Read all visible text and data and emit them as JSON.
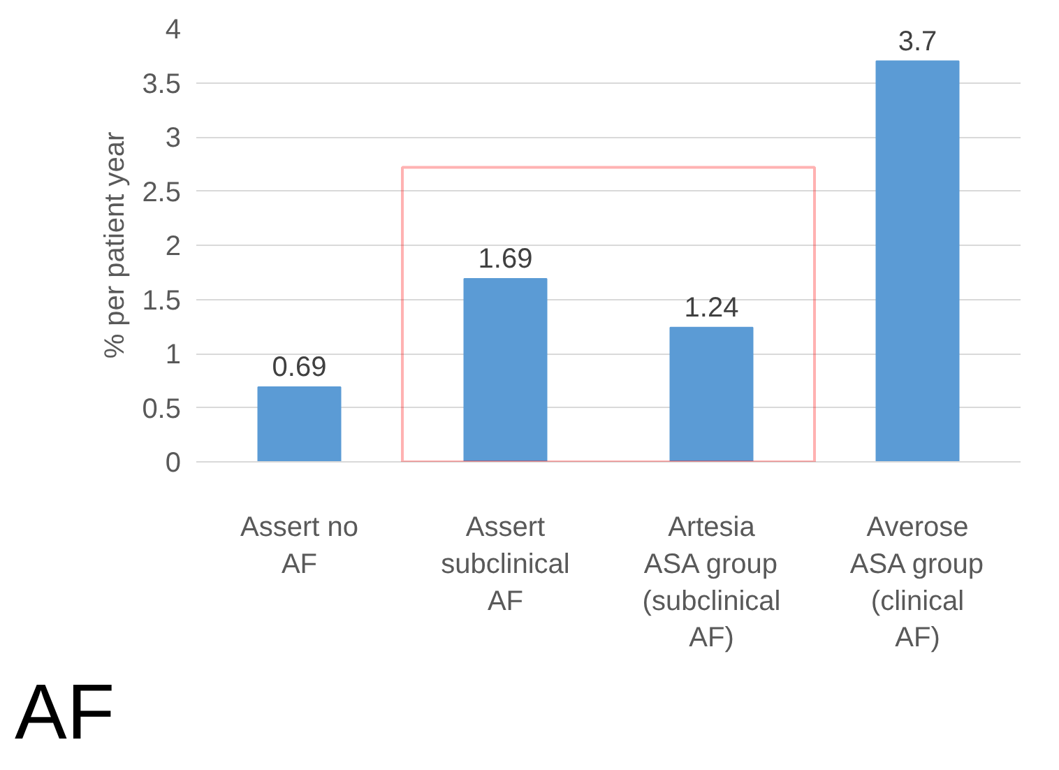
{
  "chart_data": {
    "type": "bar",
    "ylabel": "% per patient year",
    "categories": [
      "Assert no AF",
      "Assert subclinical AF",
      "Artesia ASA group (subclinical AF)",
      "Averose ASA group (clinical AF)"
    ],
    "values": [
      0.69,
      1.69,
      1.24,
      3.7
    ],
    "color": "#5b9bd5",
    "data_labels": true,
    "ylim": [
      0,
      4
    ],
    "yticks": [
      0,
      0.5,
      1,
      1.5,
      2,
      2.5,
      3,
      3.5,
      4
    ],
    "grid": "y",
    "annotations": [
      "AF"
    ]
  }
}
